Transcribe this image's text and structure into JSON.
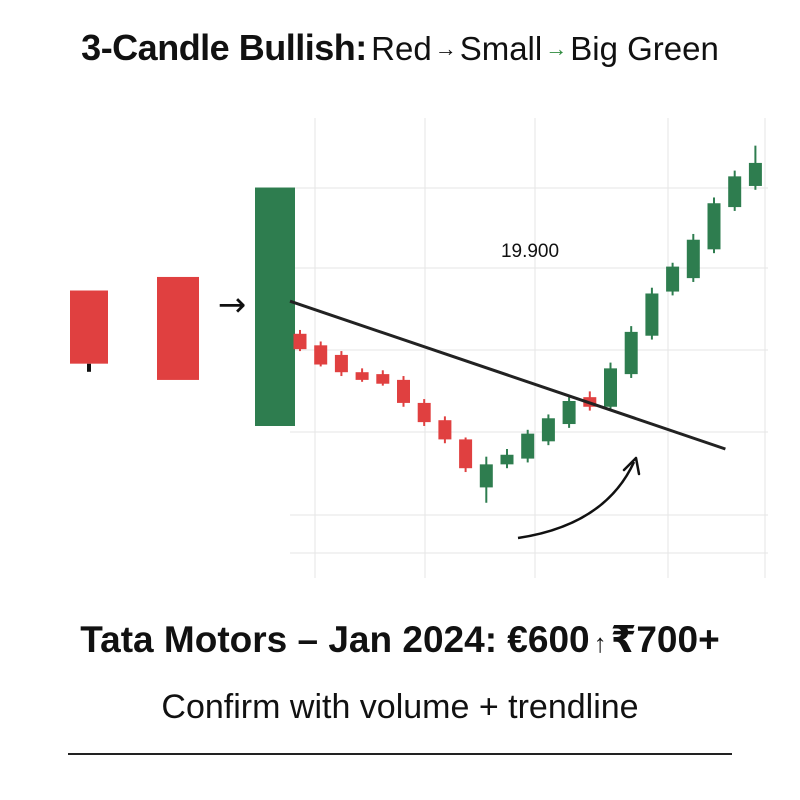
{
  "title": {
    "main": "3-Candle Bullish:",
    "step1": "Red",
    "step2": "Small",
    "step3": "Big Green",
    "arrow": "→"
  },
  "legend_arrow": "→",
  "colors": {
    "bull": "#2e7d4f",
    "bear": "#e04040",
    "grid": "#e6e6e6",
    "trendline": "#222222",
    "arrow_green": "#2e8b3e"
  },
  "chart_data": {
    "type": "candlestick",
    "annotation": "19.900",
    "grid": true,
    "pattern_example": [
      {
        "role": "red",
        "open": 100,
        "high": 100,
        "low": 70,
        "close": 73
      },
      {
        "role": "small",
        "open": 105,
        "high": 105,
        "low": 67,
        "close": 67
      },
      {
        "role": "big green",
        "open": 50,
        "high": 138,
        "low": 50,
        "close": 138
      }
    ],
    "candles": [
      {
        "open": 110,
        "high": 112,
        "low": 101,
        "close": 102
      },
      {
        "open": 104,
        "high": 106,
        "low": 93,
        "close": 94
      },
      {
        "open": 99,
        "high": 101,
        "low": 88,
        "close": 90
      },
      {
        "open": 90,
        "high": 92,
        "low": 85,
        "close": 86
      },
      {
        "open": 89,
        "high": 91,
        "low": 83,
        "close": 84
      },
      {
        "open": 86,
        "high": 88,
        "low": 72,
        "close": 74
      },
      {
        "open": 74,
        "high": 76,
        "low": 62,
        "close": 64
      },
      {
        "open": 65,
        "high": 67,
        "low": 53,
        "close": 55
      },
      {
        "open": 55,
        "high": 56,
        "low": 38,
        "close": 40
      },
      {
        "open": 30,
        "high": 46,
        "low": 22,
        "close": 42
      },
      {
        "open": 42,
        "high": 50,
        "low": 40,
        "close": 47
      },
      {
        "open": 45,
        "high": 60,
        "low": 43,
        "close": 58
      },
      {
        "open": 54,
        "high": 68,
        "low": 52,
        "close": 66
      },
      {
        "open": 63,
        "high": 77,
        "low": 61,
        "close": 75
      },
      {
        "open": 77,
        "high": 80,
        "low": 70,
        "close": 72
      },
      {
        "open": 72,
        "high": 95,
        "low": 71,
        "close": 92
      },
      {
        "open": 89,
        "high": 114,
        "low": 87,
        "close": 111
      },
      {
        "open": 109,
        "high": 134,
        "low": 107,
        "close": 131
      },
      {
        "open": 132,
        "high": 147,
        "low": 130,
        "close": 145
      },
      {
        "open": 139,
        "high": 162,
        "low": 137,
        "close": 159
      },
      {
        "open": 154,
        "high": 181,
        "low": 152,
        "close": 178
      },
      {
        "open": 176,
        "high": 195,
        "low": 174,
        "close": 192
      },
      {
        "open": 187,
        "high": 208,
        "low": 185,
        "close": 199
      }
    ],
    "trendline": {
      "from_index": 0,
      "from_value": 127,
      "to_index": 22,
      "to_value": 50
    }
  },
  "headline": {
    "text_left": "Tata Motors – Jan 2024: €600",
    "up_arrow": "↑",
    "text_right": "₹700+"
  },
  "subline": "Confirm with volume + trendline"
}
